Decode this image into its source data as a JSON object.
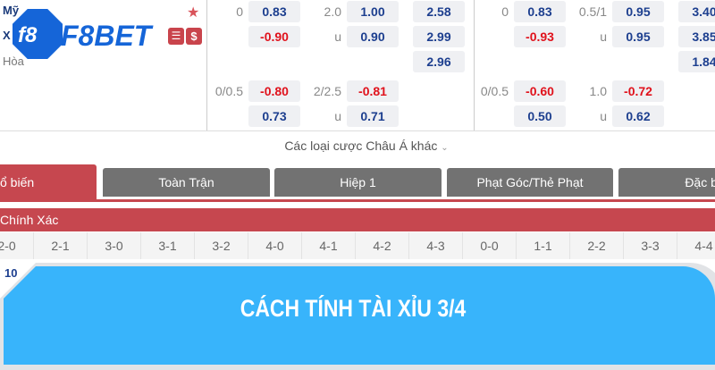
{
  "match": {
    "team1": "Mỹ",
    "team2": "X",
    "draw": "Hòa",
    "brand": "F8BET",
    "logo_mark": "f8",
    "icons": [
      "star-icon",
      "stats-icon",
      "dollar-icon"
    ]
  },
  "left": {
    "rows": [
      {
        "hcap": "0",
        "h": "0.83",
        "ou": "2.0",
        "o": "1.00",
        "x12": "2.58"
      },
      {
        "hcap": "",
        "h": "-0.90",
        "ou": "u",
        "o": "0.90",
        "x12": "2.99"
      },
      {
        "x12": "2.96"
      },
      {
        "hcap": "0/0.5",
        "h": "-0.80",
        "ou": "2/2.5",
        "o": "-0.81"
      },
      {
        "hcap": "",
        "h": "0.73",
        "ou": "u",
        "o": "0.71"
      }
    ]
  },
  "right": {
    "rows": [
      {
        "hcap": "0",
        "h": "0.83",
        "ou": "0.5/1",
        "o": "0.95",
        "x12": "3.40"
      },
      {
        "hcap": "",
        "h": "-0.93",
        "ou": "u",
        "o": "0.95",
        "x12": "3.85"
      },
      {
        "x12": "1.84"
      },
      {
        "hcap": "0/0.5",
        "h": "-0.60",
        "ou": "1.0",
        "o": "-0.72"
      },
      {
        "hcap": "",
        "h": "0.50",
        "ou": "u",
        "o": "0.62"
      }
    ]
  },
  "more_asian": "Các loại cược Châu Á khác",
  "tabs": [
    "ổ biến",
    "Toàn Trận",
    "Hiệp 1",
    "Phạt Góc/Thẻ Phạt",
    "Đặc bi"
  ],
  "section": "Chính Xác",
  "scores": [
    "2-0",
    "2-1",
    "3-0",
    "3-1",
    "3-2",
    "4-0",
    "4-1",
    "4-2",
    "4-3",
    "0-0",
    "1-1",
    "2-2",
    "3-3",
    "4-4"
  ],
  "first_odds": "10",
  "banner": {
    "title": "CÁCH TÍNH TÀI XỈU 3/4",
    "color": "#38b4fb"
  }
}
